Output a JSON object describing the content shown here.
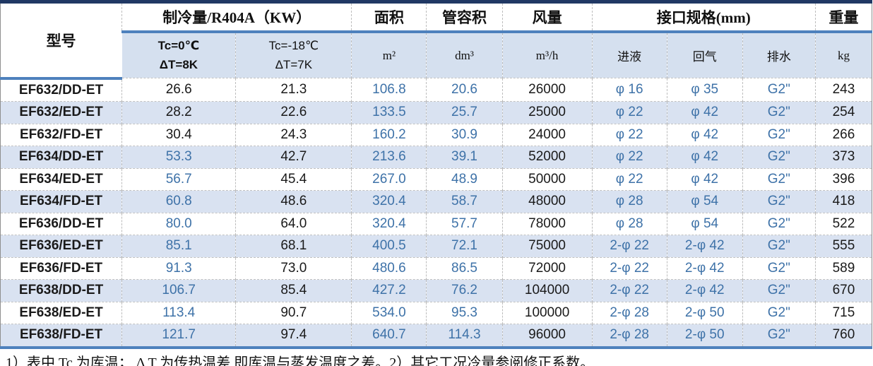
{
  "colors": {
    "dark_navy_border": "#203864",
    "medium_blue_border": "#4E81BD",
    "subheader_bg": "#D5E0EF",
    "row_alt_bg": "#D9E2F1",
    "accent_blue_text": "#3E72A8"
  },
  "table": {
    "headers": {
      "model": "型号",
      "capacity_group": "制冷量/R404A（KW）",
      "capacity_sub1_line1": "Tc=0℃",
      "capacity_sub1_line2": "ΔT=8K",
      "capacity_sub2_line1": "Tc=-18℃",
      "capacity_sub2_line2": "ΔT=7K",
      "area": "面积",
      "area_unit": "m²",
      "tube_volume": "管容积",
      "tube_volume_unit": "dm³",
      "airflow": "风量",
      "airflow_unit": "m³/h",
      "interface_group": "接口规格(mm)",
      "liquid_in": "进液",
      "gas_return": "回气",
      "drain": "排水",
      "weight": "重量",
      "weight_unit": "kg"
    },
    "rows": [
      {
        "model": "EF632/DD-ET",
        "tc0": "26.6",
        "tc18": "21.3",
        "area": "106.8",
        "tube": "20.6",
        "airflow": "26000",
        "liquid": "φ 16",
        "gas": "φ 35",
        "drain": "G2\"",
        "weight": "243",
        "tc0_blue": false
      },
      {
        "model": "EF632/ED-ET",
        "tc0": "28.2",
        "tc18": "22.6",
        "area": "133.5",
        "tube": "25.7",
        "airflow": "25000",
        "liquid": "φ 22",
        "gas": "φ 42",
        "drain": "G2\"",
        "weight": "254",
        "tc0_blue": false
      },
      {
        "model": "EF632/FD-ET",
        "tc0": "30.4",
        "tc18": "24.3",
        "area": "160.2",
        "tube": "30.9",
        "airflow": "24000",
        "liquid": "φ 22",
        "gas": "φ 42",
        "drain": "G2\"",
        "weight": "266",
        "tc0_blue": false
      },
      {
        "model": "EF634/DD-ET",
        "tc0": "53.3",
        "tc18": "42.7",
        "area": "213.6",
        "tube": "39.1",
        "airflow": "52000",
        "liquid": "φ 22",
        "gas": "φ 42",
        "drain": "G2\"",
        "weight": "373",
        "tc0_blue": true
      },
      {
        "model": "EF634/ED-ET",
        "tc0": "56.7",
        "tc18": "45.4",
        "area": "267.0",
        "tube": "48.9",
        "airflow": "50000",
        "liquid": "φ 22",
        "gas": "φ 42",
        "drain": "G2\"",
        "weight": "396",
        "tc0_blue": true
      },
      {
        "model": "EF634/FD-ET",
        "tc0": "60.8",
        "tc18": "48.6",
        "area": "320.4",
        "tube": "58.7",
        "airflow": "48000",
        "liquid": "φ 28",
        "gas": "φ 54",
        "drain": "G2\"",
        "weight": "418",
        "tc0_blue": true
      },
      {
        "model": "EF636/DD-ET",
        "tc0": "80.0",
        "tc18": "64.0",
        "area": "320.4",
        "tube": "57.7",
        "airflow": "78000",
        "liquid": "φ 28",
        "gas": "φ 54",
        "drain": "G2\"",
        "weight": "522",
        "tc0_blue": true
      },
      {
        "model": "EF636/ED-ET",
        "tc0": "85.1",
        "tc18": "68.1",
        "area": "400.5",
        "tube": "72.1",
        "airflow": "75000",
        "liquid": "2-φ 22",
        "gas": "2-φ 42",
        "drain": "G2\"",
        "weight": "555",
        "tc0_blue": true
      },
      {
        "model": "EF636/FD-ET",
        "tc0": "91.3",
        "tc18": "73.0",
        "area": "480.6",
        "tube": "86.5",
        "airflow": "72000",
        "liquid": "2-φ 22",
        "gas": "2-φ 42",
        "drain": "G2\"",
        "weight": "589",
        "tc0_blue": true
      },
      {
        "model": "EF638/DD-ET",
        "tc0": "106.7",
        "tc18": "85.4",
        "area": "427.2",
        "tube": "76.2",
        "airflow": "104000",
        "liquid": "2-φ 22",
        "gas": "2-φ 42",
        "drain": "G2\"",
        "weight": "670",
        "tc0_blue": true
      },
      {
        "model": "EF638/ED-ET",
        "tc0": "113.4",
        "tc18": "90.7",
        "area": "534.0",
        "tube": "95.3",
        "airflow": "100000",
        "liquid": "2-φ 28",
        "gas": "2-φ 50",
        "drain": "G2\"",
        "weight": "715",
        "tc0_blue": true
      },
      {
        "model": "EF638/FD-ET",
        "tc0": "121.7",
        "tc18": "97.4",
        "area": "640.7",
        "tube": "114.3",
        "airflow": "96000",
        "liquid": "2-φ 28",
        "gas": "2-φ 50",
        "drain": "G2\"",
        "weight": "760",
        "tc0_blue": true
      }
    ],
    "footnote": "1）表中 Tc 为库温； Δ T 为传热温差,即库温与蒸发温度之差。2）其它工况冷量参阅修正系数。"
  }
}
